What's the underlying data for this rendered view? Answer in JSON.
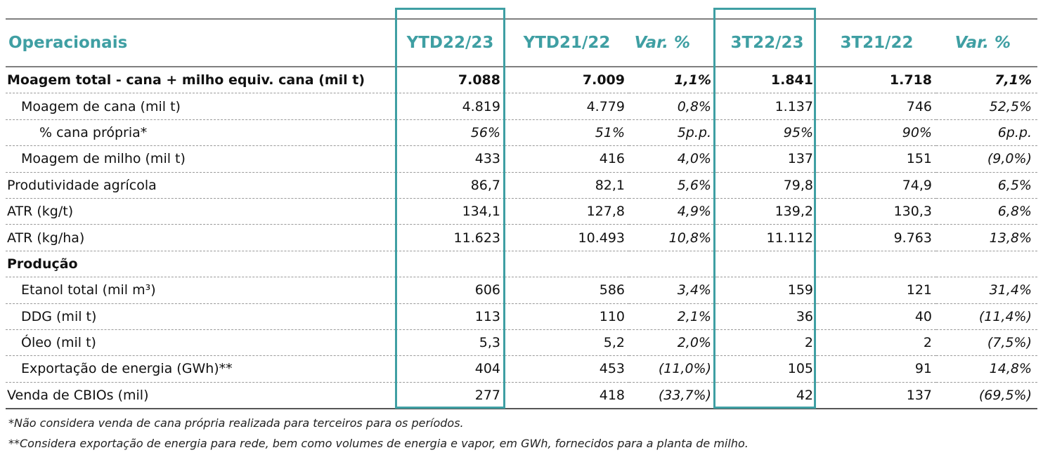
{
  "header": {
    "label": "Operacionais",
    "cols": [
      "YTD22/23",
      "YTD21/22",
      "Var. %",
      "3T22/23",
      "3T21/22",
      "Var. %"
    ]
  },
  "rows": [
    {
      "label": "Moagem total - cana + milho equiv. cana (mil t)",
      "level": 0,
      "style": "bold",
      "values": [
        "7.088",
        "7.009",
        "1,1%",
        "1.841",
        "1.718",
        "7,1%"
      ]
    },
    {
      "label": "Moagem de cana (mil t)",
      "level": 1,
      "style": "",
      "values": [
        "4.819",
        "4.779",
        "0,8%",
        "1.137",
        "746",
        "52,5%"
      ]
    },
    {
      "label": "% cana própria*",
      "level": 2,
      "style": "italic",
      "values": [
        "56%",
        "51%",
        "5p.p.",
        "95%",
        "90%",
        "6p.p."
      ]
    },
    {
      "label": "Moagem de milho (mil t)",
      "level": 1,
      "style": "",
      "values": [
        "433",
        "416",
        "4,0%",
        "137",
        "151",
        "(9,0%)"
      ]
    },
    {
      "label": "Produtividade agrícola",
      "level": 0,
      "style": "",
      "values": [
        "86,7",
        "82,1",
        "5,6%",
        "79,8",
        "74,9",
        "6,5%"
      ]
    },
    {
      "label": "ATR (kg/t)",
      "level": 0,
      "style": "",
      "values": [
        "134,1",
        "127,8",
        "4,9%",
        "139,2",
        "130,3",
        "6,8%"
      ]
    },
    {
      "label": "ATR (kg/ha)",
      "level": 0,
      "style": "",
      "values": [
        "11.623",
        "10.493",
        "10,8%",
        "11.112",
        "9.763",
        "13,8%"
      ]
    },
    {
      "label": "Produção",
      "level": 0,
      "style": "bold",
      "values": [
        "",
        "",
        "",
        "",
        "",
        ""
      ]
    },
    {
      "label": "Etanol total (mil m³)",
      "level": 1,
      "style": "",
      "values": [
        "606",
        "586",
        "3,4%",
        "159",
        "121",
        "31,4%"
      ]
    },
    {
      "label": "DDG (mil t)",
      "level": 1,
      "style": "",
      "values": [
        "113",
        "110",
        "2,1%",
        "36",
        "40",
        "(11,4%)"
      ]
    },
    {
      "label": "Óleo (mil t)",
      "level": 1,
      "style": "",
      "values": [
        "5,3",
        "5,2",
        "2,0%",
        "2",
        "2",
        "(7,5%)"
      ]
    },
    {
      "label": "Exportação de energia (GWh)**",
      "level": 1,
      "style": "",
      "values": [
        "404",
        "453",
        "(11,0%)",
        "105",
        "91",
        "14,8%"
      ]
    },
    {
      "label": "Venda de CBIOs (mil)",
      "level": 0,
      "style": "",
      "values": [
        "277",
        "418",
        "(33,7%)",
        "42",
        "137",
        "(69,5%)"
      ]
    }
  ],
  "footnotes": [
    "*Não considera venda de cana própria realizada para terceiros para os períodos.",
    "**Considera exportação de energia para rede, bem como volumes de energia e vapor, em GWh, fornecidos para a planta de milho."
  ],
  "colors": {
    "accent": "#3f9fa3"
  }
}
